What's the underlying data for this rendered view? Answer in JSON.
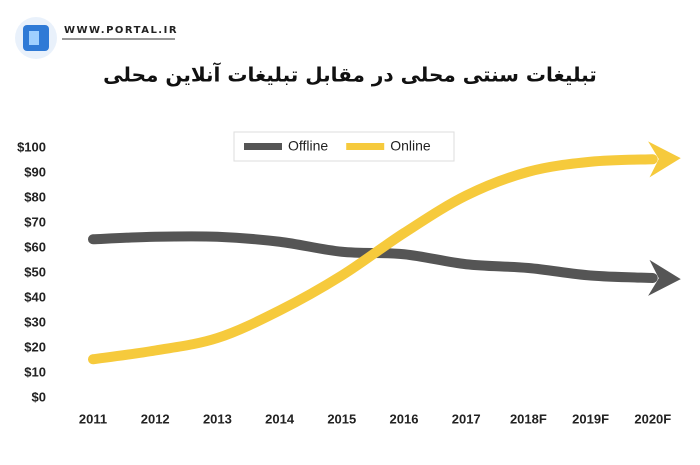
{
  "header": {
    "site": "WWW.PORTAL.IR"
  },
  "chart_data": {
    "type": "line",
    "title": "تبلیغات سنتی محلی در مقابل تبلیغات آنلاین محلی",
    "categories": [
      "2011",
      "2012",
      "2013",
      "2014",
      "2015",
      "2016",
      "2017",
      "2018F",
      "2019F",
      "2020F"
    ],
    "series": [
      {
        "name": "Offline",
        "color": "#555555",
        "values": [
          63.5,
          64.5,
          64.5,
          62.5,
          58.5,
          57.5,
          53.5,
          52,
          49,
          48
        ]
      },
      {
        "name": "Online",
        "color": "#f6ca3c",
        "values": [
          15.5,
          19,
          24,
          35,
          49,
          66,
          81,
          90.5,
          94.5,
          95.5
        ]
      }
    ],
    "ylim": [
      0,
      100
    ],
    "yticks": [
      {
        "value": 0,
        "label": "$0"
      },
      {
        "value": 10,
        "label": "$10"
      },
      {
        "value": 20,
        "label": "$20"
      },
      {
        "value": 30,
        "label": "$30"
      },
      {
        "value": 40,
        "label": "$40"
      },
      {
        "value": 50,
        "label": "$50"
      },
      {
        "value": 60,
        "label": "$60"
      },
      {
        "value": 70,
        "label": "$70"
      },
      {
        "value": 80,
        "label": "$80"
      },
      {
        "value": 90,
        "label": "$90"
      },
      {
        "value": 100,
        "label": "$100"
      }
    ],
    "grid": false,
    "legend": "top"
  }
}
